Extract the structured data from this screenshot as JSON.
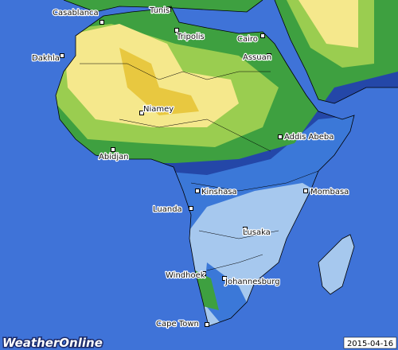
{
  "cities": [
    {
      "name": "Casablanca"
    },
    {
      "name": "Tunis"
    },
    {
      "name": "Tripolis"
    },
    {
      "name": "Cairo"
    },
    {
      "name": "Dakhla"
    },
    {
      "name": "Assuan"
    },
    {
      "name": "Niamey"
    },
    {
      "name": "Addis Abeba"
    },
    {
      "name": "Abidjan"
    },
    {
      "name": "Kinshasa"
    },
    {
      "name": "Mombasa"
    },
    {
      "name": "Luanda"
    },
    {
      "name": "Lusaka"
    },
    {
      "name": "Windhoek"
    },
    {
      "name": "Johannesburg"
    },
    {
      "name": "Cape Town"
    }
  ],
  "brand": "WeatherOnline",
  "date": "2015-04-16"
}
